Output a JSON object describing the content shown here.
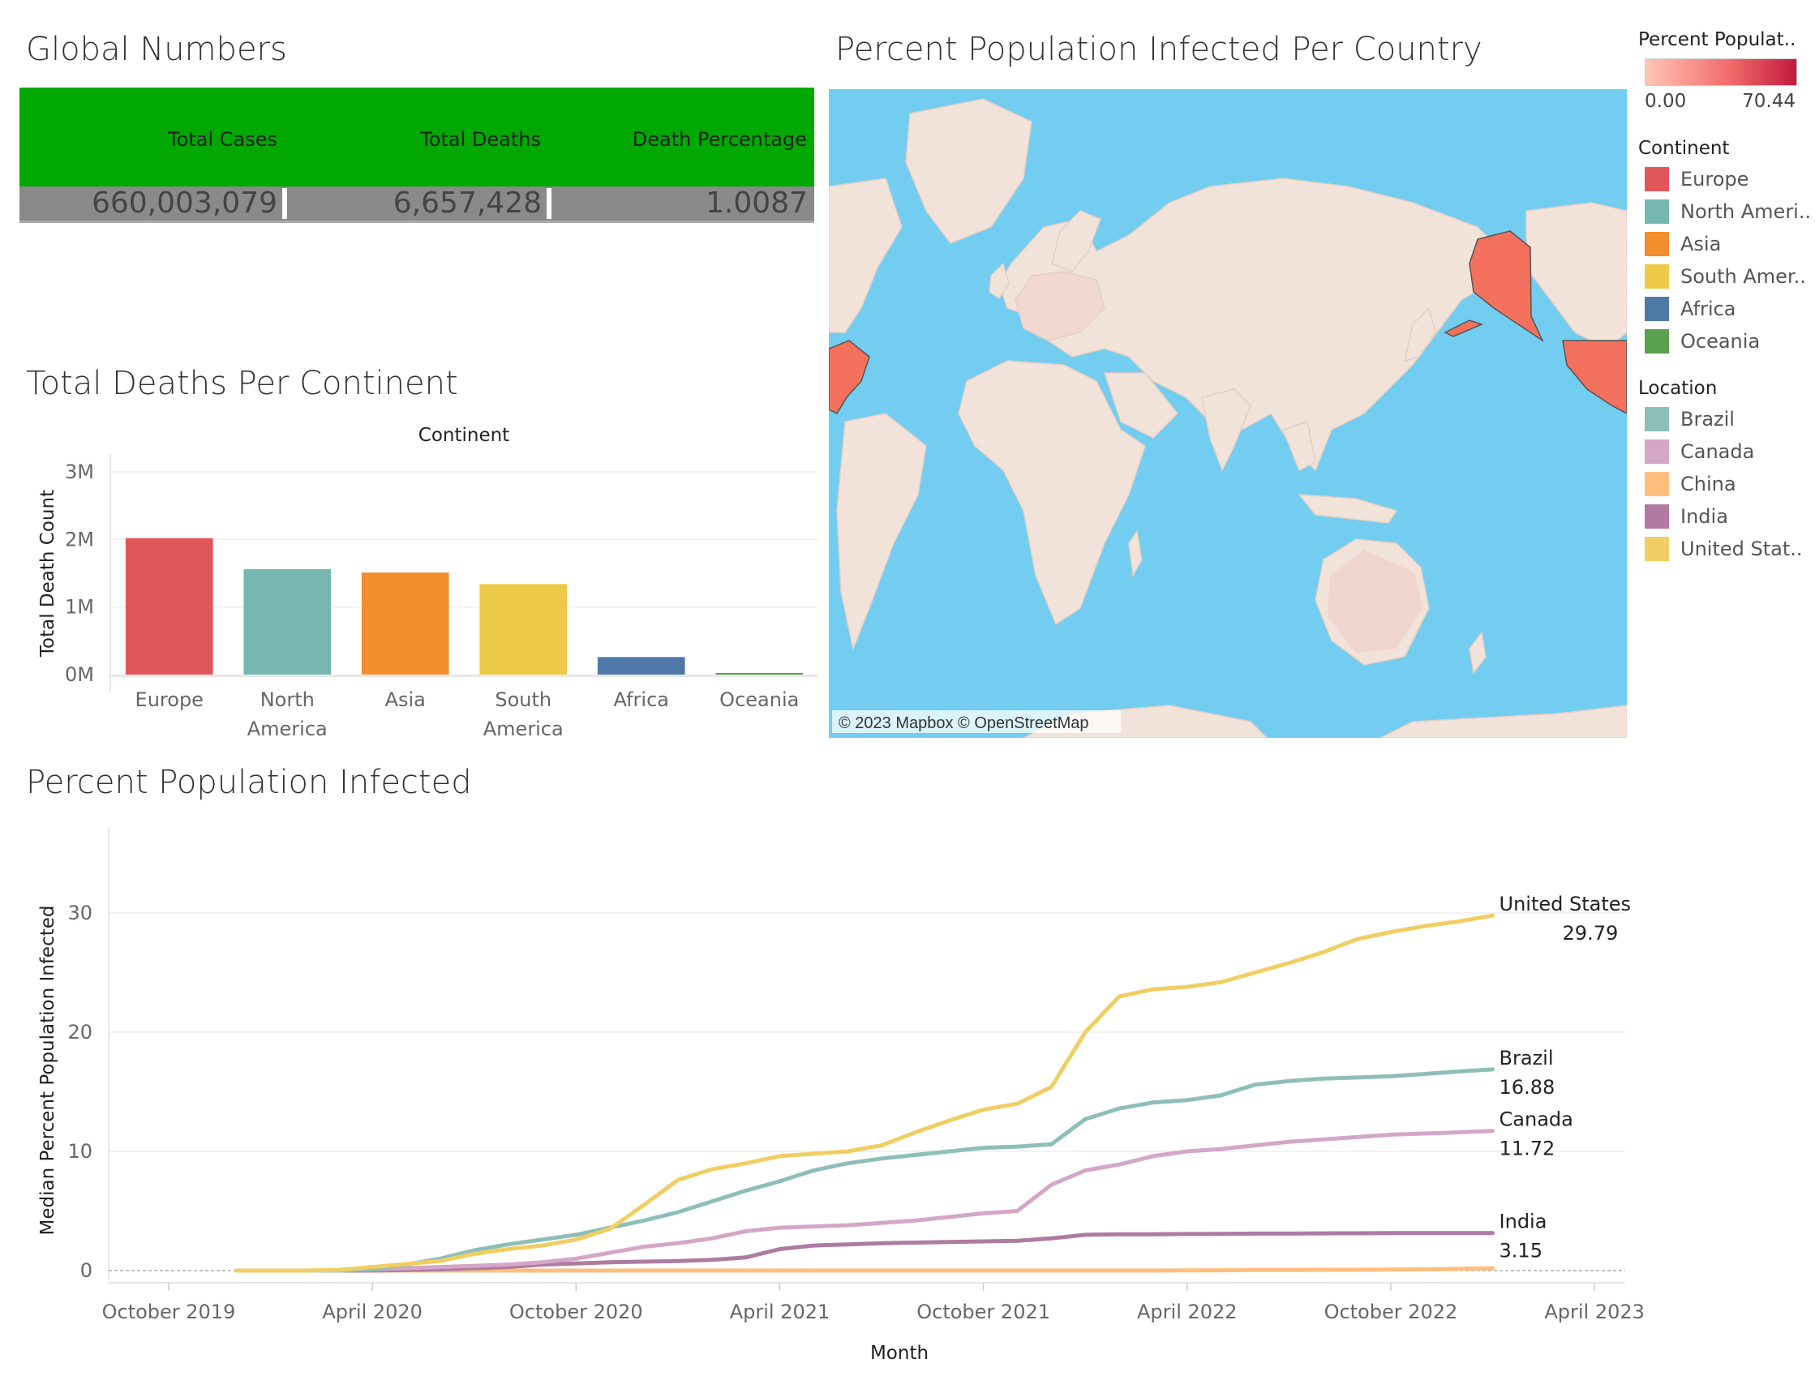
{
  "global": {
    "title": "Global Numbers",
    "headers": [
      "Total Cases",
      "Total Deaths",
      "Death Percentage"
    ],
    "values": [
      "660,003,079",
      "6,657,428",
      "1.0087"
    ],
    "header_bg": "#00a800",
    "value_bg": "#8a8a8a"
  },
  "map": {
    "title": "Percent Population Infected Per Country",
    "attribution": "© 2023 Mapbox © OpenStreetMap",
    "ocean_color": "#72cdf0",
    "land_color": "#f2e3da",
    "highlight_color": "#f4715d"
  },
  "legend": {
    "gradient_title": "Percent Populat..",
    "gradient_min": "0.00",
    "gradient_max": "70.44",
    "continent_title": "Continent",
    "continents": [
      {
        "label": "Europe",
        "color": "#e15759"
      },
      {
        "label": "North Ameri..",
        "color": "#76b7b2"
      },
      {
        "label": "Asia",
        "color": "#f28e2b"
      },
      {
        "label": "South Amer..",
        "color": "#edc948"
      },
      {
        "label": "Africa",
        "color": "#4e79a7"
      },
      {
        "label": "Oceania",
        "color": "#59a14f"
      }
    ],
    "location_title": "Location",
    "locations": [
      {
        "label": "Brazil",
        "color": "#8dbfb8"
      },
      {
        "label": "Canada",
        "color": "#d4a6c8"
      },
      {
        "label": "China",
        "color": "#ffbe7d"
      },
      {
        "label": "India",
        "color": "#b07aa1"
      },
      {
        "label": "United Stat..",
        "color": "#f1ce63"
      }
    ]
  },
  "chart_data": [
    {
      "type": "bar",
      "title": "Total Deaths Per Continent",
      "header": "Continent",
      "ylabel": "Total Death Count",
      "ylim": [
        0,
        3000000
      ],
      "yticks": [
        "0M",
        "1M",
        "2M",
        "3M"
      ],
      "categories": [
        [
          "Europe"
        ],
        [
          "North",
          "America"
        ],
        [
          "Asia"
        ],
        [
          "South",
          "America"
        ],
        [
          "Africa"
        ],
        [
          "Oceania"
        ]
      ],
      "values": [
        2020000,
        1560000,
        1510000,
        1340000,
        260000,
        25000
      ],
      "colors": [
        "#e15759",
        "#76b7b2",
        "#f28e2b",
        "#edc948",
        "#4e79a7",
        "#59a14f"
      ]
    },
    {
      "type": "line",
      "title": "Percent Population Infected",
      "xlabel": "Month",
      "ylabel": "Median Percent Population Infected",
      "ylim": [
        0,
        35
      ],
      "yticks": [
        "0",
        "10",
        "20",
        "30"
      ],
      "xticks": [
        "October 2019",
        "April 2020",
        "October 2020",
        "April 2021",
        "October 2021",
        "April 2022",
        "October 2022",
        "April 2023"
      ],
      "months": [
        "2020-01",
        "2020-02",
        "2020-03",
        "2020-04",
        "2020-05",
        "2020-06",
        "2020-07",
        "2020-08",
        "2020-09",
        "2020-10",
        "2020-11",
        "2020-12",
        "2021-01",
        "2021-02",
        "2021-03",
        "2021-04",
        "2021-05",
        "2021-06",
        "2021-07",
        "2021-08",
        "2021-09",
        "2021-10",
        "2021-11",
        "2021-12",
        "2022-01",
        "2022-02",
        "2022-03",
        "2022-04",
        "2022-05",
        "2022-06",
        "2022-07",
        "2022-08",
        "2022-09",
        "2022-10",
        "2022-11",
        "2022-12",
        "2023-01"
      ],
      "series": [
        {
          "name": "United States",
          "end_label": "29.79",
          "color": "#f1ce63",
          "values": [
            0,
            0,
            0.05,
            0.3,
            0.55,
            0.8,
            1.4,
            1.8,
            2.1,
            2.6,
            3.5,
            5.5,
            7.6,
            8.5,
            9.0,
            9.6,
            9.8,
            10.0,
            10.5,
            11.6,
            12.6,
            13.5,
            14.0,
            15.4,
            20.0,
            23.0,
            23.6,
            23.8,
            24.2,
            25.0,
            25.8,
            26.7,
            27.8,
            28.4,
            28.9,
            29.3,
            29.79
          ]
        },
        {
          "name": "Brazil",
          "end_label": "16.88",
          "color": "#8dbfb8",
          "values": [
            0,
            0,
            0,
            0.1,
            0.5,
            1.0,
            1.7,
            2.2,
            2.6,
            3.0,
            3.6,
            4.2,
            4.9,
            5.8,
            6.7,
            7.5,
            8.4,
            9.0,
            9.4,
            9.7,
            10.0,
            10.3,
            10.4,
            10.6,
            12.7,
            13.6,
            14.1,
            14.3,
            14.7,
            15.6,
            15.9,
            16.1,
            16.2,
            16.3,
            16.5,
            16.7,
            16.88
          ]
        },
        {
          "name": "Canada",
          "end_label": "11.72",
          "color": "#d4a6c8",
          "values": [
            0,
            0,
            0,
            0.1,
            0.2,
            0.3,
            0.4,
            0.5,
            0.7,
            1.0,
            1.5,
            2.0,
            2.3,
            2.7,
            3.3,
            3.6,
            3.7,
            3.8,
            4.0,
            4.2,
            4.5,
            4.8,
            5.0,
            7.2,
            8.4,
            8.9,
            9.6,
            10.0,
            10.2,
            10.5,
            10.8,
            11.0,
            11.2,
            11.4,
            11.5,
            11.6,
            11.72
          ]
        },
        {
          "name": "India",
          "end_label": "3.15",
          "color": "#b07aa1",
          "values": [
            0,
            0,
            0,
            0,
            0.05,
            0.1,
            0.2,
            0.3,
            0.5,
            0.6,
            0.7,
            0.75,
            0.8,
            0.9,
            1.1,
            1.8,
            2.1,
            2.2,
            2.3,
            2.35,
            2.4,
            2.45,
            2.5,
            2.7,
            3.0,
            3.05,
            3.05,
            3.07,
            3.08,
            3.1,
            3.1,
            3.12,
            3.13,
            3.14,
            3.14,
            3.15,
            3.15
          ]
        },
        {
          "name": "China",
          "end_label": "",
          "color": "#ffbe7d",
          "values": [
            0,
            0,
            0,
            0,
            0,
            0,
            0,
            0,
            0,
            0,
            0,
            0,
            0,
            0,
            0,
            0,
            0,
            0,
            0,
            0,
            0,
            0,
            0,
            0,
            0,
            0,
            0,
            0.02,
            0.03,
            0.05,
            0.05,
            0.06,
            0.07,
            0.08,
            0.1,
            0.15,
            0.2
          ]
        }
      ]
    }
  ]
}
